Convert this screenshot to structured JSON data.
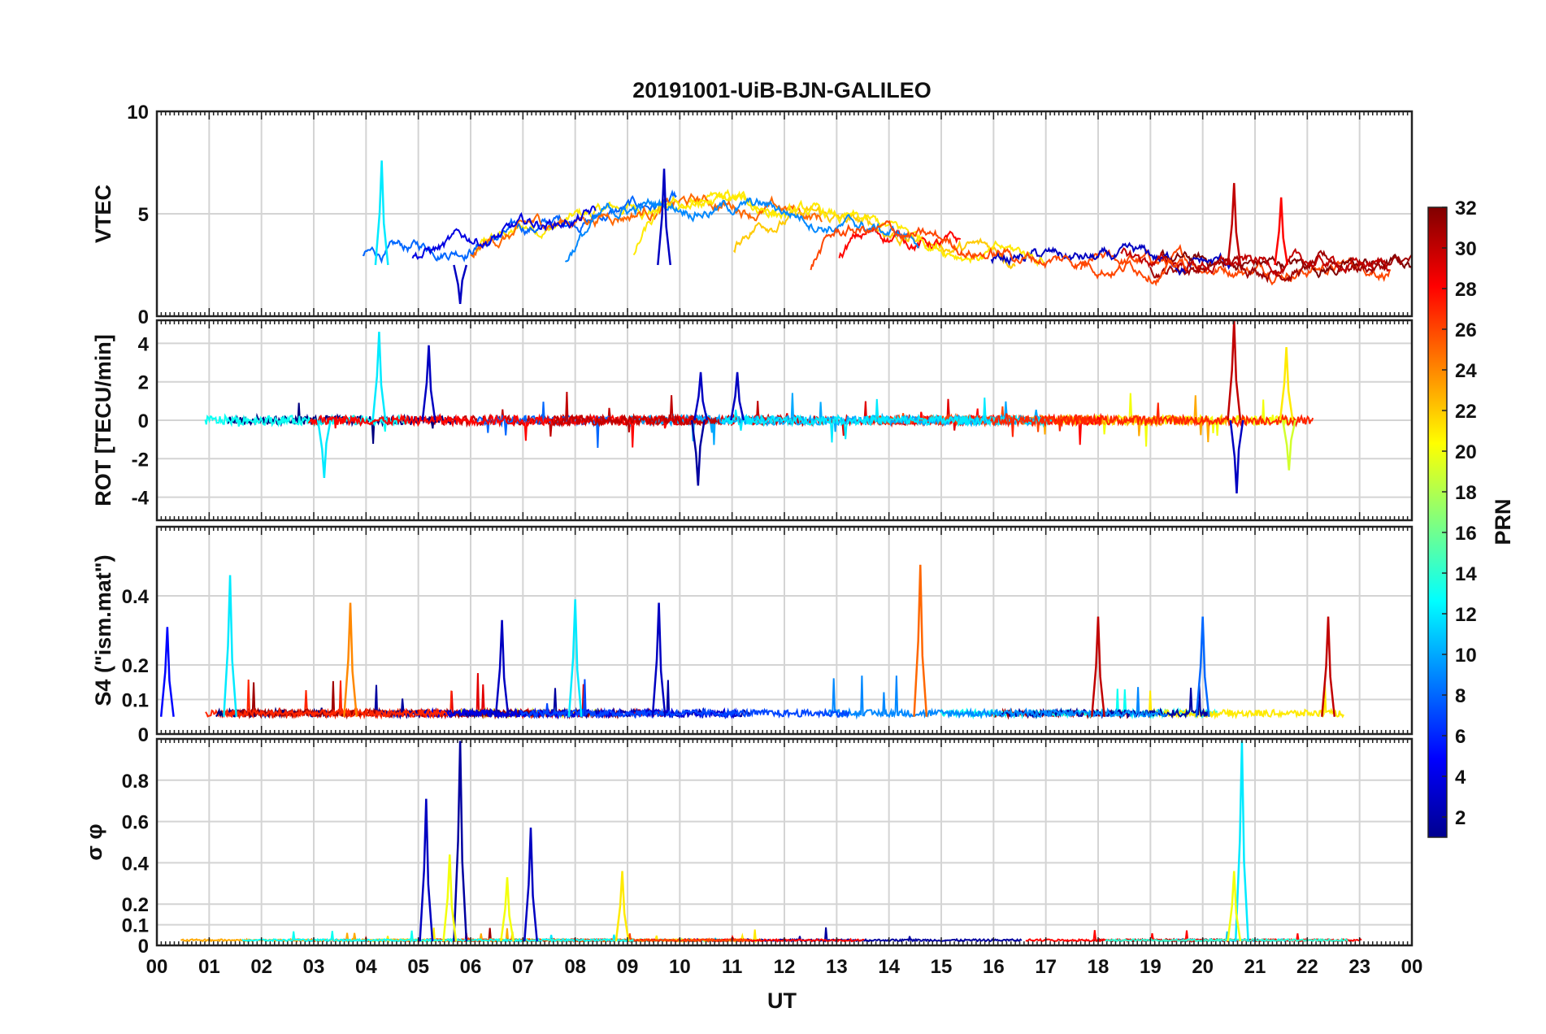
{
  "chart_data": {
    "type": "line",
    "title": "20191001-UiB-BJN-GALILEO",
    "xlabel": "UT",
    "xlim": [
      0,
      24
    ],
    "x_tick_labels": [
      "00",
      "01",
      "02",
      "03",
      "04",
      "05",
      "06",
      "07",
      "08",
      "09",
      "10",
      "11",
      "12",
      "13",
      "14",
      "15",
      "16",
      "17",
      "18",
      "19",
      "20",
      "21",
      "22",
      "23",
      "00"
    ],
    "colorbar": {
      "label": "PRN",
      "range": [
        1,
        32
      ],
      "ticks": [
        "2",
        "4",
        "6",
        "8",
        "10",
        "12",
        "14",
        "16",
        "18",
        "20",
        "22",
        "24",
        "26",
        "28",
        "30",
        "32"
      ],
      "colormap": "jet"
    },
    "panels": [
      {
        "id": "vtec",
        "ylabel": "VTEC",
        "ylim": [
          0,
          10
        ],
        "y_ticks": [
          "0",
          "5",
          "10"
        ],
        "baseline": 2.5,
        "noise": 0.6,
        "features": [
          {
            "x": 4.3,
            "y": 7.6,
            "prn": 12
          },
          {
            "x": 5.8,
            "y": 0.6,
            "prn": 3
          },
          {
            "x": 9.7,
            "y": 7.2,
            "prn": 3
          },
          {
            "x": 20.6,
            "y": 6.5,
            "prn": 30
          },
          {
            "x": 21.5,
            "y": 5.8,
            "prn": 28
          }
        ]
      },
      {
        "id": "rot",
        "ylabel": "ROT [TECU/min]",
        "ylim": [
          -5.2,
          5.2
        ],
        "y_ticks": [
          "-4",
          "-2",
          "0",
          "2",
          "4"
        ],
        "baseline": 0,
        "noise": 0.3,
        "features": [
          {
            "x": 4.25,
            "y": 4.6,
            "prn": 12
          },
          {
            "x": 3.2,
            "y": -3.0,
            "prn": 12
          },
          {
            "x": 5.2,
            "y": 3.9,
            "prn": 3
          },
          {
            "x": 10.35,
            "y": -3.4,
            "prn": 2
          },
          {
            "x": 10.4,
            "y": 2.5,
            "prn": 3
          },
          {
            "x": 11.1,
            "y": 2.5,
            "prn": 3
          },
          {
            "x": 20.6,
            "y": 5.2,
            "prn": 30
          },
          {
            "x": 20.65,
            "y": -3.8,
            "prn": 3
          },
          {
            "x": 21.6,
            "y": 3.8,
            "prn": 21
          },
          {
            "x": 21.65,
            "y": -2.6,
            "prn": 19
          }
        ]
      },
      {
        "id": "s4",
        "ylabel": "S4 (\"ism.mat\")",
        "ylim": [
          0,
          0.6
        ],
        "y_ticks": [
          "0",
          "0.1",
          "0.2",
          "0.4"
        ],
        "baseline": 0.05,
        "noise": 0.02,
        "features": [
          {
            "x": 0.2,
            "y": 0.31,
            "prn": 5
          },
          {
            "x": 1.4,
            "y": 0.46,
            "prn": 12
          },
          {
            "x": 3.7,
            "y": 0.38,
            "prn": 24
          },
          {
            "x": 6.6,
            "y": 0.33,
            "prn": 3
          },
          {
            "x": 8.0,
            "y": 0.39,
            "prn": 12
          },
          {
            "x": 9.6,
            "y": 0.38,
            "prn": 3
          },
          {
            "x": 14.6,
            "y": 0.49,
            "prn": 25
          },
          {
            "x": 18.0,
            "y": 0.34,
            "prn": 30
          },
          {
            "x": 20.0,
            "y": 0.34,
            "prn": 8
          },
          {
            "x": 22.4,
            "y": 0.34,
            "prn": 30
          }
        ]
      },
      {
        "id": "sigma",
        "ylabel": "σ φ",
        "ylim": [
          0,
          1
        ],
        "y_ticks": [
          "0",
          "0.1",
          "0.2",
          "0.4",
          "0.6",
          "0.8"
        ],
        "baseline": 0.02,
        "noise": 0.01,
        "features": [
          {
            "x": 5.15,
            "y": 0.71,
            "prn": 3
          },
          {
            "x": 5.8,
            "y": 0.99,
            "prn": 2
          },
          {
            "x": 7.15,
            "y": 0.57,
            "prn": 3
          },
          {
            "x": 5.6,
            "y": 0.44,
            "prn": 20
          },
          {
            "x": 6.7,
            "y": 0.33,
            "prn": 20
          },
          {
            "x": 8.9,
            "y": 0.36,
            "prn": 21
          },
          {
            "x": 20.75,
            "y": 0.99,
            "prn": 12
          },
          {
            "x": 20.6,
            "y": 0.36,
            "prn": 20
          }
        ]
      }
    ]
  }
}
